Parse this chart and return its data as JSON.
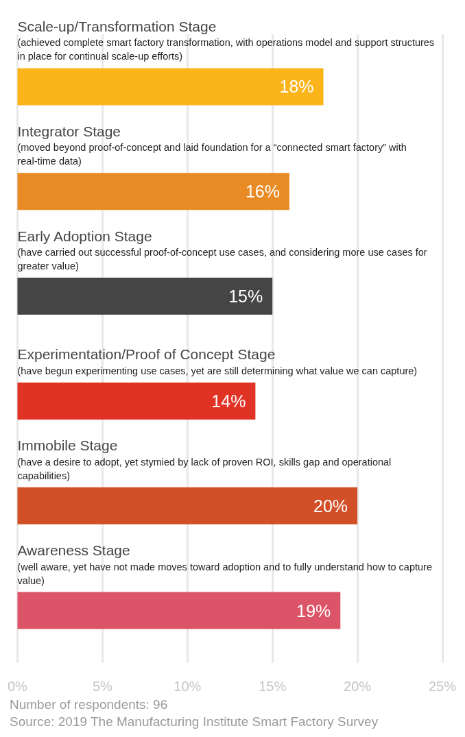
{
  "chart_data": {
    "type": "bar",
    "orientation": "horizontal",
    "categories": [
      "Scale-up/Transformation Stage",
      "Integrator Stage",
      "Early Adoption Stage",
      "Experimentation/Proof of Concept Stage",
      "Immobile Stage",
      "Awareness Stage"
    ],
    "values": [
      18,
      16,
      15,
      14,
      20,
      19
    ],
    "colors": [
      "#fbb41a",
      "#e98b24",
      "#454545",
      "#e13325",
      "#d24f27",
      "#dc5468"
    ],
    "value_labels": [
      "18%",
      "16%",
      "15%",
      "14%",
      "20%",
      "19%"
    ],
    "xlim": [
      0,
      25
    ],
    "xticks": [
      {
        "value": 0,
        "label": "0%"
      },
      {
        "value": 5,
        "label": "5%"
      },
      {
        "value": 10,
        "label": "10%"
      },
      {
        "value": 15,
        "label": "15%"
      },
      {
        "value": 20,
        "label": "20%"
      },
      {
        "value": 25,
        "label": "25%"
      }
    ],
    "grid": "x",
    "annotations": [
      "(achieved complete smart factory transformation, with operations model and support structures in place for continual scale-up efforts)",
      "(moved beyond proof-of-concept and laid foundation for a “connected smart factory” with real-time data)",
      "(have carried out successful proof-of-concept use cases, and considering more use cases for greater value)",
      "(have begun experimenting use cases, yet are still determining what value we can capture)",
      "(have a desire to adopt, yet stymied by lack of proven ROI, skills gap and operational capabilities)",
      "(well aware, yet have not made moves toward adoption and to fully understand how to capture value)",
      "Number of respondents: 96",
      "Source: 2019 The Manufacturing Institute Smart Factory Survey"
    ]
  }
}
